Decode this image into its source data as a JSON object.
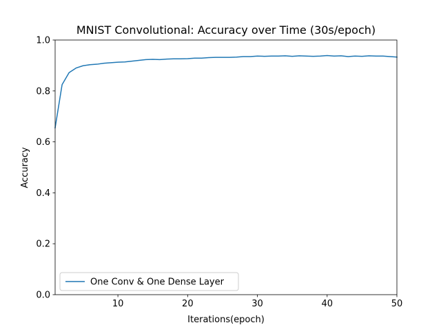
{
  "chart_data": {
    "type": "line",
    "title": "MNIST Convolutional: Accuracy over Time (30s/epoch)",
    "xlabel": "Iterations(epoch)",
    "ylabel": "Accuracy",
    "xlim": [
      1,
      50
    ],
    "ylim": [
      0.0,
      1.0
    ],
    "xticks": [
      10,
      20,
      30,
      40,
      50
    ],
    "xtick_labels": [
      "10",
      "20",
      "30",
      "40",
      "50"
    ],
    "yticks": [
      0.0,
      0.2,
      0.4,
      0.6,
      0.8,
      1.0
    ],
    "ytick_labels": [
      "0.0",
      "0.2",
      "0.4",
      "0.6",
      "0.8",
      "1.0"
    ],
    "grid": false,
    "legend_position": "lower-left",
    "x": [
      1,
      2,
      3,
      4,
      5,
      6,
      7,
      8,
      9,
      10,
      11,
      12,
      13,
      14,
      15,
      16,
      17,
      18,
      19,
      20,
      21,
      22,
      23,
      24,
      25,
      26,
      27,
      28,
      29,
      30,
      31,
      32,
      33,
      34,
      35,
      36,
      37,
      38,
      39,
      40,
      41,
      42,
      43,
      44,
      45,
      46,
      47,
      48,
      49,
      50
    ],
    "series": [
      {
        "name": "One Conv & One Dense Layer",
        "color": "#1f77b4",
        "values": [
          0.655,
          0.825,
          0.872,
          0.89,
          0.899,
          0.903,
          0.905,
          0.909,
          0.911,
          0.913,
          0.914,
          0.917,
          0.92,
          0.923,
          0.924,
          0.923,
          0.925,
          0.926,
          0.926,
          0.927,
          0.929,
          0.929,
          0.931,
          0.932,
          0.932,
          0.932,
          0.933,
          0.935,
          0.935,
          0.937,
          0.936,
          0.937,
          0.937,
          0.938,
          0.936,
          0.938,
          0.937,
          0.936,
          0.937,
          0.939,
          0.937,
          0.938,
          0.935,
          0.937,
          0.936,
          0.938,
          0.937,
          0.937,
          0.935,
          0.933
        ]
      }
    ]
  }
}
